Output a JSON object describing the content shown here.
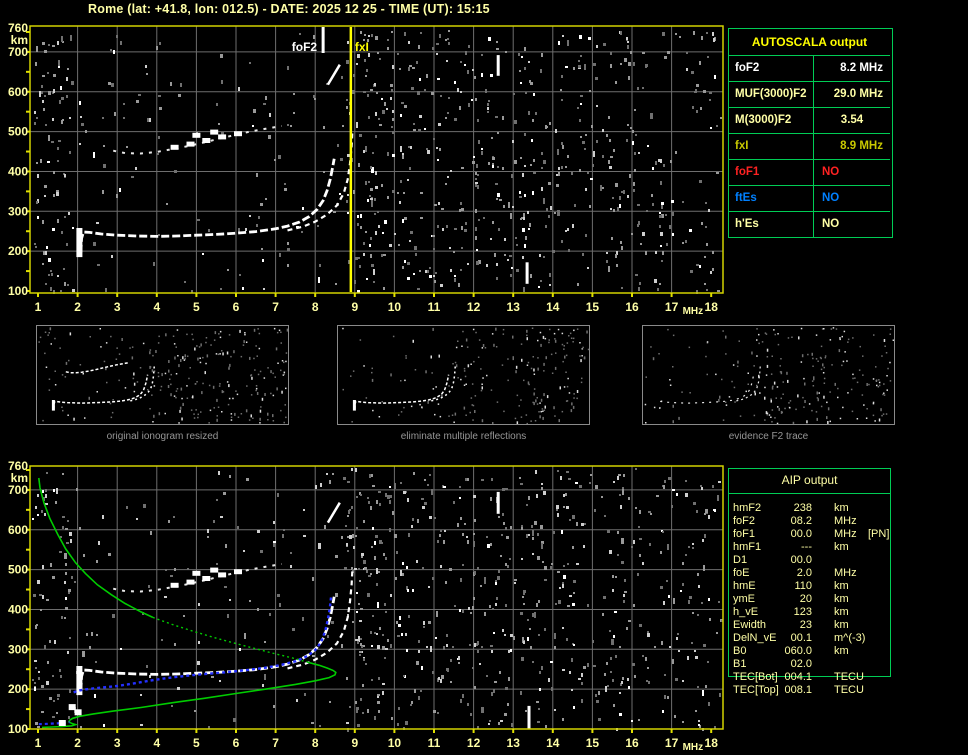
{
  "title": "Rome (lat: +41.8, lon: 012.5) - DATE: 2025 12 25 - TIME (UT): 15:15",
  "colors": {
    "pale_yellow": "#ffffa6",
    "bright_yellow": "#ffff00",
    "dark_yellow": "#c9c900",
    "white": "#ffffff",
    "red": "#ff2222",
    "blue": "#0080ff",
    "green_border": "#00cc55",
    "plot_border": "#d2d200",
    "grid": "#6e6e6e",
    "caption_gray": "#969696",
    "profile_green": "#00cc00",
    "trace_fit_blue": "#2430ff"
  },
  "plots": {
    "x_ticks": [
      "1",
      "2",
      "3",
      "4",
      "5",
      "6",
      "7",
      "8",
      "9",
      "10",
      "11",
      "12",
      "13",
      "14",
      "15",
      "16",
      "17",
      "18"
    ],
    "y_ticks": [
      "760",
      "700",
      "600",
      "500",
      "400",
      "300",
      "200",
      "100"
    ],
    "x_unit": "MHz",
    "y_unit": "km",
    "top_markers": {
      "fof2_label": "foF2",
      "fof2_freq": 8.2,
      "fxi_label": "fxI",
      "fxi_freq": 8.9
    }
  },
  "autoscala_table": {
    "header": "AUTOSCALA output",
    "rows": [
      {
        "label": "foF2",
        "value": "8.2 MHz",
        "color": "#ffffff",
        "align": "right"
      },
      {
        "label": "MUF(3000)F2",
        "value": "29.0 MHz",
        "color": "#ffffa6",
        "align": "right"
      },
      {
        "label": "M(3000)F2",
        "value": "3.54",
        "color": "#ffffa6",
        "align": "center"
      },
      {
        "label": "fxI",
        "value": "8.9 MHz",
        "color": "#c9c900",
        "align": "right"
      },
      {
        "label": "foF1",
        "value": "NO",
        "color": "#ff2222",
        "align": "left"
      },
      {
        "label": "ftEs",
        "value": "NO",
        "color": "#0080ff",
        "align": "left"
      },
      {
        "label": "h'Es",
        "value": "NO",
        "color": "#ffffa6",
        "align": "left"
      }
    ]
  },
  "thumbnails": [
    {
      "caption": "original ionogram resized"
    },
    {
      "caption": "eliminate multiple reflections"
    },
    {
      "caption": "evidence F2 trace"
    }
  ],
  "aip_table": {
    "header": "AIP output",
    "rows": [
      {
        "label": "hmF2",
        "value": "238",
        "unit": "km",
        "note": ""
      },
      {
        "label": "foF2",
        "value": "08.2",
        "unit": "MHz",
        "note": ""
      },
      {
        "label": "foF1",
        "value": "00.0",
        "unit": "MHz",
        "note": "[PN]"
      },
      {
        "label": "hmF1",
        "value": "---",
        "unit": "km",
        "note": ""
      },
      {
        "label": "D1",
        "value": "00.0",
        "unit": "",
        "note": ""
      },
      {
        "label": "foE",
        "value": "2.0",
        "unit": "MHz",
        "note": ""
      },
      {
        "label": "hmE",
        "value": "110",
        "unit": "km",
        "note": ""
      },
      {
        "label": "ymE",
        "value": "20",
        "unit": "km",
        "note": ""
      },
      {
        "label": "h_vE",
        "value": "123",
        "unit": "km",
        "note": ""
      },
      {
        "label": "Ewidth",
        "value": "23",
        "unit": "km",
        "note": ""
      },
      {
        "label": "DelN_vE",
        "value": "00.1",
        "unit": "m^(-3)",
        "note": ""
      },
      {
        "label": "B0",
        "value": "060.0",
        "unit": "km",
        "note": ""
      },
      {
        "label": "B1",
        "value": "02.0",
        "unit": "",
        "note": ""
      },
      {
        "label": "TEC[Bot]",
        "value": "004.1",
        "unit": "TECU",
        "note": ""
      },
      {
        "label": "TEC[Top]",
        "value": "008.1",
        "unit": "TECU",
        "note": ""
      }
    ]
  },
  "chart_data": {
    "type": "ionogram",
    "x_unit": "MHz",
    "y_unit": "km",
    "x_range": [
      1,
      18
    ],
    "y_range": [
      100,
      760
    ],
    "markers": {
      "foF2_MHz": 8.2,
      "fxI_MHz": 8.9
    },
    "f2_trace": [
      [
        2.08,
        196
      ],
      [
        2.1,
        232
      ],
      [
        2.15,
        248
      ],
      [
        2.3,
        247
      ],
      [
        2.6,
        243
      ],
      [
        3.0,
        240
      ],
      [
        3.5,
        238
      ],
      [
        4.0,
        237
      ],
      [
        4.5,
        238
      ],
      [
        5.0,
        240
      ],
      [
        5.5,
        242
      ],
      [
        6.0,
        245
      ],
      [
        6.5,
        249
      ],
      [
        7.0,
        256
      ],
      [
        7.3,
        263
      ],
      [
        7.6,
        273
      ],
      [
        7.85,
        287
      ],
      [
        8.05,
        305
      ],
      [
        8.2,
        327
      ],
      [
        8.3,
        352
      ],
      [
        8.38,
        380
      ],
      [
        8.44,
        410
      ],
      [
        8.48,
        432
      ]
    ],
    "f2_x_branch": [
      [
        7.3,
        252
      ],
      [
        7.7,
        262
      ],
      [
        8.0,
        274
      ],
      [
        8.3,
        292
      ],
      [
        8.55,
        315
      ],
      [
        8.72,
        345
      ],
      [
        8.82,
        380
      ],
      [
        8.88,
        420
      ],
      [
        8.92,
        462
      ],
      [
        8.94,
        500
      ]
    ],
    "second_hop": [
      [
        2.9,
        452
      ],
      [
        3.2,
        446
      ],
      [
        3.6,
        445
      ],
      [
        4.0,
        449
      ],
      [
        4.4,
        456
      ],
      [
        4.8,
        464
      ],
      [
        5.2,
        473
      ],
      [
        5.6,
        483
      ],
      [
        6.0,
        492
      ],
      [
        6.4,
        501
      ],
      [
        6.8,
        508
      ],
      [
        7.15,
        514
      ]
    ],
    "second_hop_blobs": [
      [
        4.45,
        462
      ],
      [
        4.85,
        470
      ],
      [
        5.25,
        479
      ],
      [
        5.65,
        488
      ],
      [
        6.05,
        496
      ],
      [
        5.0,
        492
      ],
      [
        5.45,
        500
      ]
    ],
    "start_blob": [
      2.02,
      185,
      258
    ],
    "bottom_blobs": [
      [
        1.85,
        155
      ],
      [
        2.0,
        142
      ],
      [
        1.6,
        115
      ]
    ],
    "artifact_vlines_top": [
      [
        12.62,
        640,
        692
      ],
      [
        13.35,
        118,
        172
      ]
    ],
    "artifact_vlines_bottom": [
      [
        12.62,
        640,
        695
      ],
      [
        13.4,
        100,
        158
      ]
    ],
    "diag_dash": [
      [
        8.32,
        618
      ],
      [
        8.62,
        668
      ]
    ],
    "profile_solid1": [
      [
        1.02,
        730
      ],
      [
        1.05,
        705
      ],
      [
        1.15,
        668
      ],
      [
        1.3,
        628
      ],
      [
        1.5,
        588
      ],
      [
        1.7,
        552
      ],
      [
        1.95,
        517
      ],
      [
        2.2,
        490
      ],
      [
        2.5,
        462
      ],
      [
        2.85,
        437
      ],
      [
        3.2,
        415
      ],
      [
        3.6,
        394
      ],
      [
        3.9,
        380
      ]
    ],
    "profile_dotted": [
      [
        3.9,
        380
      ],
      [
        4.4,
        362
      ],
      [
        4.9,
        346
      ],
      [
        5.4,
        331
      ],
      [
        5.9,
        317
      ],
      [
        6.4,
        304
      ],
      [
        6.9,
        291
      ],
      [
        7.4,
        279
      ],
      [
        7.8,
        268
      ]
    ],
    "profile_solid2": [
      [
        7.8,
        268
      ],
      [
        8.1,
        260
      ],
      [
        8.3,
        253
      ],
      [
        8.45,
        247
      ],
      [
        8.52,
        242
      ],
      [
        8.5,
        236
      ],
      [
        8.35,
        229
      ],
      [
        8.0,
        221
      ],
      [
        7.5,
        212
      ],
      [
        6.8,
        201
      ],
      [
        6.0,
        189
      ],
      [
        5.2,
        177
      ],
      [
        4.4,
        166
      ],
      [
        3.6,
        154
      ],
      [
        2.9,
        145
      ],
      [
        2.4,
        138
      ],
      [
        2.05,
        132
      ],
      [
        1.88,
        127
      ],
      [
        1.8,
        122
      ],
      [
        1.78,
        118
      ],
      [
        1.85,
        114
      ],
      [
        1.95,
        111
      ],
      [
        1.85,
        108
      ],
      [
        1.6,
        106
      ],
      [
        1.35,
        105
      ],
      [
        1.1,
        104
      ]
    ],
    "fit_blue": [
      [
        1.9,
        192
      ],
      [
        2.05,
        197
      ],
      [
        2.3,
        201
      ],
      [
        2.6,
        204
      ],
      [
        3.0,
        208
      ],
      [
        3.4,
        214
      ],
      [
        3.8,
        221
      ],
      [
        4.2,
        227
      ],
      [
        4.7,
        233
      ],
      [
        5.2,
        238
      ],
      [
        5.7,
        242
      ],
      [
        6.2,
        247
      ],
      [
        6.7,
        253
      ],
      [
        7.1,
        260
      ],
      [
        7.5,
        270
      ],
      [
        7.8,
        283
      ],
      [
        8.0,
        298
      ],
      [
        8.15,
        318
      ],
      [
        8.25,
        345
      ],
      [
        8.32,
        375
      ],
      [
        8.37,
        405
      ],
      [
        8.4,
        430
      ]
    ],
    "fit_blue_low": [
      [
        1.02,
        112
      ],
      [
        1.25,
        113
      ],
      [
        1.45,
        114
      ],
      [
        1.65,
        115
      ],
      [
        1.8,
        117
      ]
    ]
  }
}
